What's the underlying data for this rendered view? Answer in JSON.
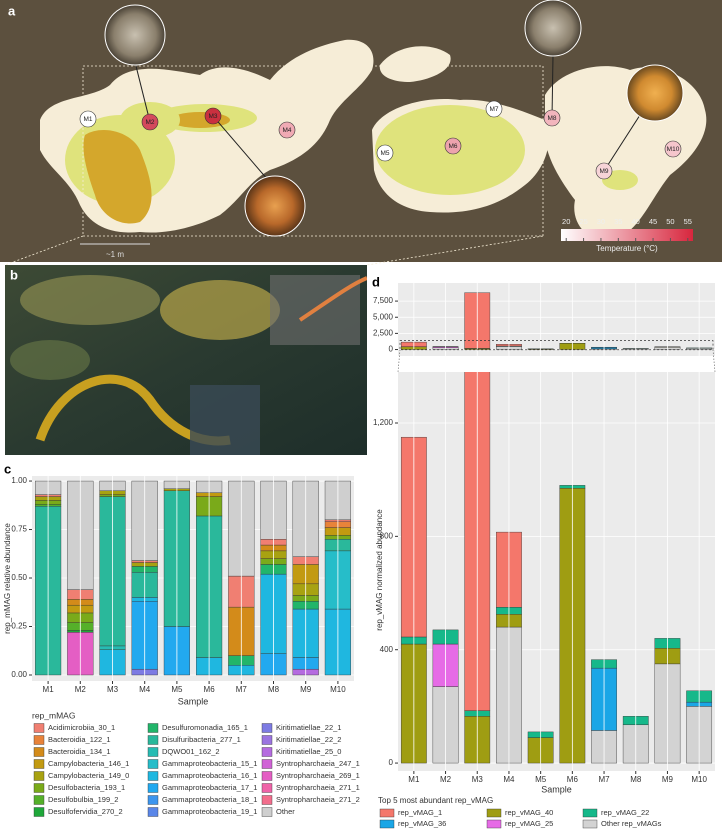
{
  "panel_labels": [
    "a",
    "b",
    "c",
    "d"
  ],
  "map": {
    "sites": [
      "M1",
      "M2",
      "M3",
      "M4",
      "M5",
      "M6",
      "M7",
      "M8",
      "M9",
      "M10"
    ],
    "scale_label": "~1 m",
    "colorbar": {
      "title": "Temperature (°C)",
      "lim": [
        18.5,
        56.5
      ],
      "ticks": [
        20,
        25,
        30,
        35,
        40,
        45,
        50,
        55
      ],
      "colors": [
        "#ffffff",
        "#d7263d"
      ]
    }
  },
  "chart_data": [
    {
      "type": "bar",
      "stacked": true,
      "ylabel": "rep_mMAG relative abundance",
      "xlabel": "Sample",
      "legend_title": "rep_mMAG",
      "categories": [
        "M1",
        "M2",
        "M3",
        "M4",
        "M5",
        "M6",
        "M7",
        "M8",
        "M9",
        "M10"
      ],
      "ylim": [
        -0.031,
        1.026
      ],
      "yticks": [
        {
          "value": 0,
          "label": "0.00"
        },
        {
          "value": 0.25,
          "label": "0.25"
        },
        {
          "value": 0.5,
          "label": "0.50"
        },
        {
          "value": 0.75,
          "label": "0.75"
        },
        {
          "value": 1,
          "label": "1.00"
        }
      ],
      "grid": true,
      "series": [
        {
          "name": "Acidimicrobiia_30_1",
          "color": "#f07f72",
          "values": [
            0.01,
            0.05,
            0,
            0.01,
            0,
            0,
            0.16,
            0.03,
            0.04,
            0.01
          ]
        },
        {
          "name": "Bacteroidia_122_1",
          "color": "#e8833a",
          "values": [
            0,
            0,
            0,
            0,
            0,
            0,
            0,
            0,
            0,
            0.03
          ]
        },
        {
          "name": "Bacteroidia_134_1",
          "color": "#d38b1a",
          "values": [
            0,
            0.03,
            0,
            0,
            0,
            0,
            0.25,
            0.03,
            0,
            0
          ]
        },
        {
          "name": "Campylobacteria_146_1",
          "color": "#c29a11",
          "values": [
            0,
            0.04,
            0,
            0,
            0,
            0.02,
            0,
            0,
            0.1,
            0.04
          ]
        },
        {
          "name": "Campylobacteria_149_0",
          "color": "#a8a211",
          "values": [
            0.02,
            0,
            0.02,
            0.02,
            0.01,
            0,
            0,
            0.04,
            0.06,
            0
          ]
        },
        {
          "name": "Desulfobacteria_193_1",
          "color": "#7aaa1a",
          "values": [
            0.02,
            0.05,
            0.01,
            0,
            0,
            0.1,
            0,
            0.03,
            0.03,
            0.02
          ]
        },
        {
          "name": "Desulfobulbia_199_2",
          "color": "#55b02a",
          "values": [
            0.01,
            0.04,
            0,
            0,
            0,
            0,
            0,
            0,
            0,
            0
          ]
        },
        {
          "name": "Desulfofervidia_270_2",
          "color": "#1fa83a",
          "values": [
            0,
            0.01,
            0,
            0,
            0,
            0,
            0,
            0,
            0,
            0
          ]
        },
        {
          "name": "Desulfuromonadia_165_1",
          "color": "#22b56a",
          "values": [
            0,
            0,
            0,
            0.03,
            0,
            0,
            0.05,
            0.05,
            0.04,
            0
          ]
        },
        {
          "name": "Disulfuribacteria_277_1",
          "color": "#2ab89b",
          "values": [
            0.87,
            0,
            0.77,
            0.13,
            0.7,
            0.73,
            0,
            0,
            0,
            0.06
          ]
        },
        {
          "name": "DQWO01_162_2",
          "color": "#27bcb3",
          "values": [
            0,
            0,
            0.02,
            0,
            0,
            0,
            0,
            0,
            0,
            0
          ]
        },
        {
          "name": "Gammaproteobacteria_15_1",
          "color": "#26bdc9",
          "values": [
            0,
            0,
            0,
            0,
            0,
            0,
            0,
            0,
            0,
            0.3
          ]
        },
        {
          "name": "Gammaproteobacteria_16_1",
          "color": "#1fb7e0",
          "values": [
            0,
            0,
            0.13,
            0.02,
            0,
            0.09,
            0.05,
            0.41,
            0.25,
            0.34
          ]
        },
        {
          "name": "Gammaproteobacteria_17_1",
          "color": "#22a9ef",
          "values": [
            0,
            0,
            0,
            0.35,
            0.25,
            0,
            0,
            0.11,
            0.06,
            0
          ]
        },
        {
          "name": "Gammaproteobacteria_18_1",
          "color": "#3d95ee",
          "values": [
            0,
            0,
            0,
            0,
            0,
            0,
            0,
            0,
            0,
            0
          ]
        },
        {
          "name": "Gammaproteobacteria_19_1",
          "color": "#5a86e8",
          "values": [
            0,
            0,
            0,
            0,
            0,
            0,
            0,
            0,
            0,
            0
          ]
        },
        {
          "name": "Kiritimatiellae_22_1",
          "color": "#7d7be3",
          "values": [
            0,
            0,
            0,
            0.03,
            0,
            0,
            0,
            0,
            0,
            0
          ]
        },
        {
          "name": "Kiritimatiellae_22_2",
          "color": "#9b74e0",
          "values": [
            0,
            0,
            0,
            0,
            0,
            0,
            0,
            0,
            0,
            0
          ]
        },
        {
          "name": "Kiritimatiellae_25_0",
          "color": "#b56be0",
          "values": [
            0,
            0,
            0,
            0,
            0,
            0,
            0,
            0,
            0.03,
            0
          ]
        },
        {
          "name": "Syntropharchaeia_247_1",
          "color": "#d063d6",
          "values": [
            0,
            0,
            0,
            0,
            0,
            0,
            0,
            0,
            0,
            0
          ]
        },
        {
          "name": "Syntropharchaeia_269_1",
          "color": "#e45ec4",
          "values": [
            0,
            0.22,
            0,
            0,
            0,
            0,
            0,
            0,
            0,
            0
          ]
        },
        {
          "name": "Syntropharchaeia_271_1",
          "color": "#ef63a8",
          "values": [
            0,
            0,
            0,
            0,
            0,
            0,
            0,
            0,
            0,
            0
          ]
        },
        {
          "name": "Syntropharchaeia_271_2",
          "color": "#f26d8c",
          "values": [
            0,
            0,
            0,
            0,
            0,
            0,
            0,
            0,
            0,
            0
          ]
        },
        {
          "name": "Other",
          "color": "#cfcfcf",
          "values": [
            0.07,
            0.56,
            0.05,
            0.41,
            0.04,
            0.06,
            0.49,
            0.3,
            0.39,
            0.2
          ]
        }
      ]
    },
    {
      "type": "bar",
      "stacked": true,
      "ylabel": "rep_vMAG normalized abundance",
      "xlabel": "Sample",
      "legend_title": "Top 5 most abundant rep_vMAG",
      "categories": [
        "M1",
        "M2",
        "M3",
        "M4",
        "M5",
        "M6",
        "M7",
        "M8",
        "M9",
        "M10"
      ],
      "grid": true,
      "panels": [
        {
          "ylim": [
            -1000,
            10300
          ],
          "yticks": [
            0,
            {
              "value": 2500,
              "label": "2,500"
            },
            {
              "value": 5000,
              "label": "5,000"
            },
            {
              "value": 7500,
              "label": "7,500"
            }
          ]
        },
        {
          "ylim": [
            -28,
            1380
          ],
          "yticks": [
            0,
            400,
            800,
            {
              "value": 1200,
              "label": "1,200"
            }
          ]
        }
      ],
      "series": [
        {
          "name": "rep_vMAG_1",
          "color": "#f4776b",
          "values": [
            705,
            0,
            8615,
            265,
            0,
            0,
            0,
            0,
            0,
            0
          ]
        },
        {
          "name": "rep_vMAG_36",
          "color": "#1aa6e6",
          "values": [
            0,
            0,
            0,
            0,
            0,
            0,
            220,
            0,
            0,
            15
          ]
        },
        {
          "name": "rep_vMAG_40",
          "color": "#9f9d12",
          "values": [
            420,
            0,
            165,
            45,
            90,
            970,
            0,
            0,
            55,
            0
          ]
        },
        {
          "name": "rep_vMAG_25",
          "color": "#e66be6",
          "values": [
            0,
            150,
            0,
            0,
            0,
            0,
            0,
            0,
            0,
            0
          ]
        },
        {
          "name": "rep_vMAG_22",
          "color": "#16b88a",
          "values": [
            25,
            50,
            20,
            25,
            20,
            10,
            30,
            30,
            35,
            40
          ]
        },
        {
          "name": "Other rep_vMAGs",
          "color": "#d3d3d3",
          "values": [
            0,
            270,
            0,
            480,
            0,
            0,
            115,
            135,
            350,
            200
          ]
        }
      ]
    }
  ]
}
